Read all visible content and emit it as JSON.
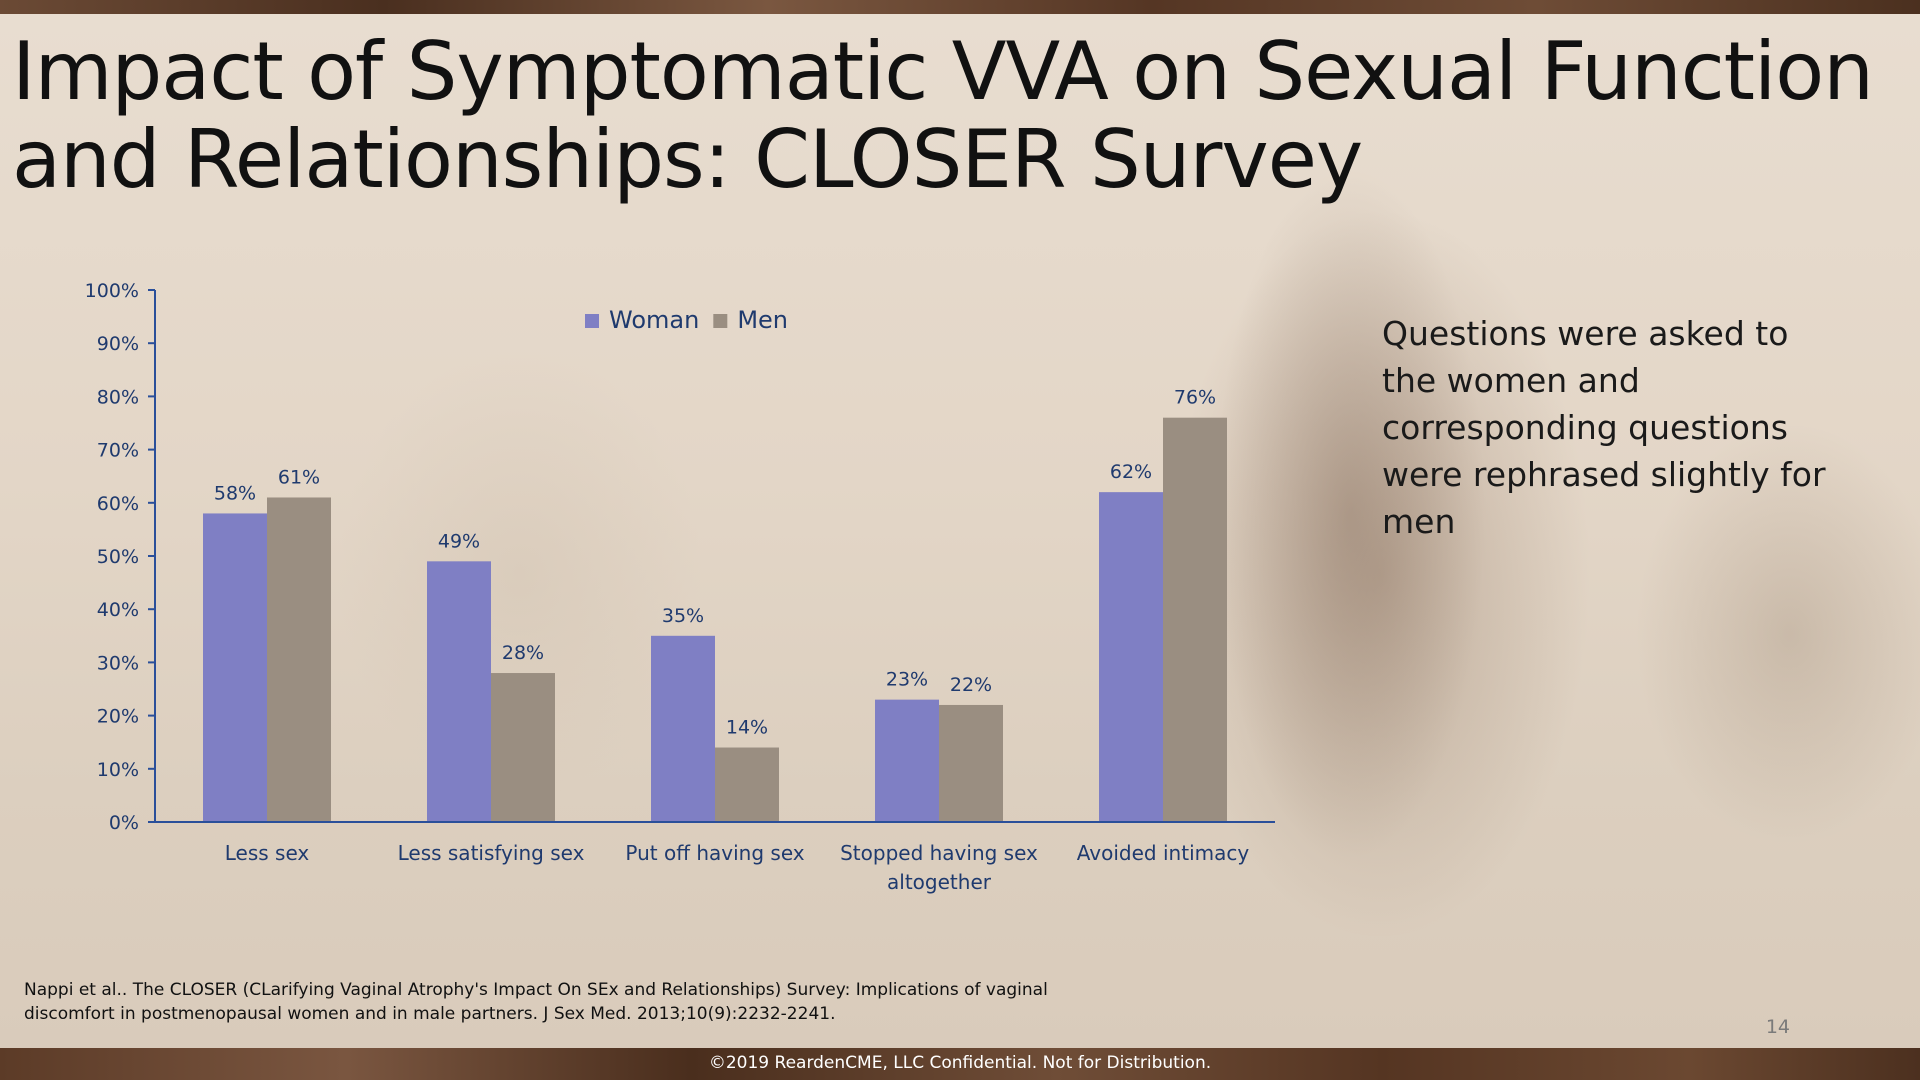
{
  "slide": {
    "title": "Impact of Symptomatic VVA on Sexual Function and Relationships: CLOSER Survey",
    "side_note": "Questions were asked to the women and corresponding questions were rephrased slightly for men",
    "citation": "Nappi et al.. The CLOSER (CLarifying Vaginal Atrophy's Impact On SEx and Relationships) Survey: Implications of vaginal discomfort in postmenopausal women and in male partners. J Sex Med. 2013;10(9):2232-2241.",
    "page_number": "14",
    "footer": "©2019 ReardenCME, LLC  Confidential. Not for Distribution."
  },
  "chart_data": {
    "type": "bar",
    "title": "",
    "xlabel": "",
    "ylabel": "",
    "ylim": [
      0,
      100
    ],
    "yticks": [
      "0%",
      "10%",
      "20%",
      "30%",
      "40%",
      "50%",
      "60%",
      "70%",
      "80%",
      "90%",
      "100%"
    ],
    "legend_position": "top-center",
    "grid": false,
    "categories": [
      [
        "Less sex"
      ],
      [
        "Less satisfying sex"
      ],
      [
        "Put off having sex"
      ],
      [
        "Stopped having sex",
        "altogether"
      ],
      [
        "Avoided intimacy"
      ]
    ],
    "series": [
      {
        "name": "Woman",
        "color": "#7f7fc4",
        "values": [
          58,
          49,
          35,
          23,
          62
        ]
      },
      {
        "name": "Men",
        "color": "#9a8e81",
        "values": [
          61,
          28,
          14,
          22,
          76
        ]
      }
    ],
    "label_color": "#1f3a6e",
    "axis_color": "#2a4f9a"
  }
}
